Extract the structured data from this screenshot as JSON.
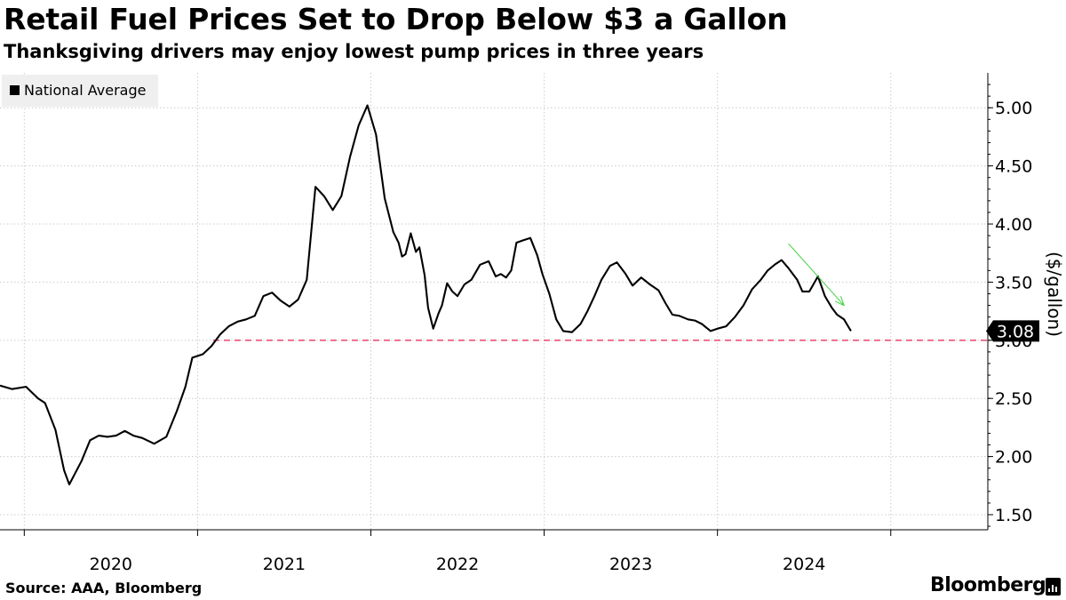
{
  "header": {
    "title": "Retail Fuel Prices Set to Drop Below $3 a Gallon",
    "subtitle": "Thanksgiving drivers may enjoy lowest pump prices in three years"
  },
  "footer": {
    "source": "Source: AAA, Bloomberg",
    "brand": "Bloomberg"
  },
  "colors": {
    "line": "#000000",
    "grid": "#cccccc",
    "reference": "#e8547a",
    "arrow": "#3ed13e",
    "legend_bg": "#efefef"
  },
  "chart_data": {
    "type": "line",
    "title": "Retail Fuel Prices Set to Drop Below $3 a Gallon",
    "subtitle": "Thanksgiving drivers may enjoy lowest pump prices in three years",
    "xlabel": "",
    "ylabel": "($/gallon)",
    "xlim": [
      2019.25,
      2024.95
    ],
    "ylim": [
      1.37,
      5.3
    ],
    "yticks": [
      1.5,
      2.0,
      2.5,
      3.0,
      3.5,
      4.0,
      4.5,
      5.0
    ],
    "ytick_labels": [
      "1.50",
      "2.00",
      "2.50",
      "3.00",
      "3.50",
      "4.00",
      "4.50",
      "5.00"
    ],
    "year_boundaries": [
      2019.39,
      2020.39,
      2021.39,
      2022.39,
      2023.39,
      2024.39
    ],
    "xtick_labels": [
      {
        "label": "2020",
        "x": 2019.89
      },
      {
        "label": "2021",
        "x": 2020.89
      },
      {
        "label": "2022",
        "x": 2021.89
      },
      {
        "label": "2023",
        "x": 2022.89
      },
      {
        "label": "2024",
        "x": 2023.89
      }
    ],
    "grid": true,
    "legend": {
      "entries": [
        "National Average"
      ],
      "position": "top-left"
    },
    "reference_line": {
      "y": 3.0,
      "style": "dashed"
    },
    "annotations": [
      {
        "type": "last-value-label",
        "text": "3.08",
        "y": 3.08
      },
      {
        "type": "trend-arrow",
        "from": [
          2023.8,
          3.83
        ],
        "to": [
          2024.12,
          3.3
        ]
      }
    ],
    "series": [
      {
        "name": "National Average",
        "x": [
          2019.25,
          2019.32,
          2019.4,
          2019.47,
          2019.51,
          2019.57,
          2019.62,
          2019.65,
          2019.72,
          2019.77,
          2019.82,
          2019.87,
          2019.92,
          2019.97,
          2020.02,
          2020.07,
          2020.14,
          2020.21,
          2020.27,
          2020.32,
          2020.36,
          2020.42,
          2020.47,
          2020.52,
          2020.57,
          2020.62,
          2020.67,
          2020.72,
          2020.77,
          2020.82,
          2020.87,
          2020.92,
          2020.97,
          2021.02,
          2021.07,
          2021.12,
          2021.17,
          2021.22,
          2021.27,
          2021.32,
          2021.37,
          2021.42,
          2021.47,
          2021.52,
          2021.55,
          2021.57,
          2021.59,
          2021.62,
          2021.65,
          2021.67,
          2021.7,
          2021.72,
          2021.75,
          2021.78,
          2021.8,
          2021.83,
          2021.86,
          2021.89,
          2021.93,
          2021.97,
          2022.02,
          2022.07,
          2022.11,
          2022.14,
          2022.17,
          2022.2,
          2022.23,
          2022.27,
          2022.31,
          2022.35,
          2022.38,
          2022.42,
          2022.46,
          2022.5,
          2022.55,
          2022.6,
          2022.64,
          2022.68,
          2022.72,
          2022.77,
          2022.81,
          2022.86,
          2022.9,
          2022.95,
          2023.0,
          2023.05,
          2023.09,
          2023.13,
          2023.17,
          2023.22,
          2023.26,
          2023.3,
          2023.35,
          2023.39,
          2023.44,
          2023.49,
          2023.54,
          2023.59,
          2023.64,
          2023.68,
          2023.72,
          2023.76,
          2023.8,
          2023.85,
          2023.88,
          2023.92,
          2023.97,
          2024.01,
          2024.05,
          2024.08,
          2024.12,
          2024.16
        ],
        "values": [
          2.61,
          2.58,
          2.6,
          2.5,
          2.46,
          2.23,
          1.88,
          1.76,
          1.96,
          2.14,
          2.18,
          2.17,
          2.18,
          2.22,
          2.18,
          2.16,
          2.11,
          2.17,
          2.39,
          2.6,
          2.85,
          2.88,
          2.95,
          3.05,
          3.12,
          3.16,
          3.18,
          3.21,
          3.38,
          3.41,
          3.34,
          3.29,
          3.35,
          3.52,
          4.32,
          4.24,
          4.12,
          4.24,
          4.58,
          4.85,
          5.02,
          4.77,
          4.22,
          3.93,
          3.84,
          3.72,
          3.74,
          3.92,
          3.76,
          3.8,
          3.56,
          3.28,
          3.1,
          3.23,
          3.3,
          3.49,
          3.42,
          3.38,
          3.48,
          3.52,
          3.65,
          3.68,
          3.55,
          3.57,
          3.54,
          3.6,
          3.84,
          3.86,
          3.88,
          3.73,
          3.57,
          3.4,
          3.18,
          3.08,
          3.07,
          3.14,
          3.25,
          3.38,
          3.52,
          3.64,
          3.67,
          3.57,
          3.47,
          3.54,
          3.48,
          3.43,
          3.32,
          3.22,
          3.21,
          3.18,
          3.17,
          3.14,
          3.08,
          3.1,
          3.12,
          3.2,
          3.3,
          3.44,
          3.52,
          3.6,
          3.65,
          3.69,
          3.62,
          3.52,
          3.42,
          3.42,
          3.55,
          3.38,
          3.28,
          3.22,
          3.18,
          3.08
        ]
      }
    ]
  }
}
